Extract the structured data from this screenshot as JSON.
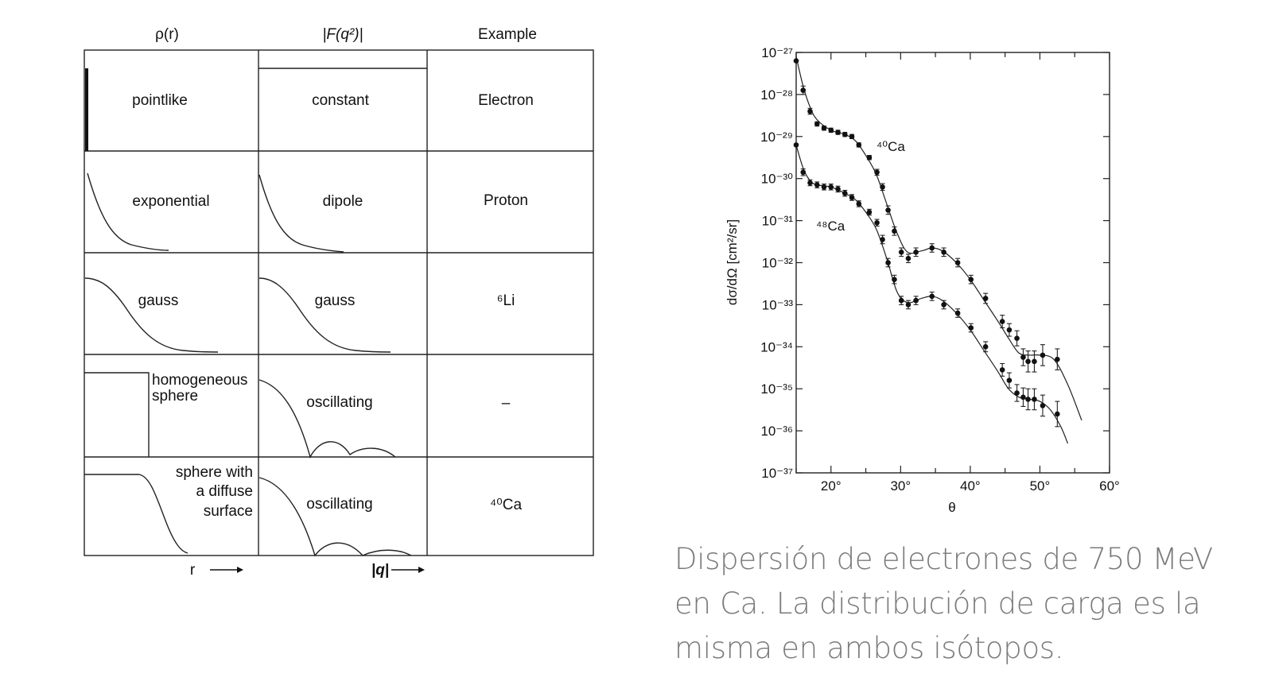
{
  "form_factor_table": {
    "headers": {
      "density": "ρ(r)",
      "form_factor": "|F(q²)|",
      "example": "Example"
    },
    "rows": [
      {
        "density": "pointlike",
        "form_factor": "constant",
        "example": "Electron"
      },
      {
        "density": "exponential",
        "form_factor": "dipole",
        "example": "Proton"
      },
      {
        "density": "gauss",
        "form_factor": "gauss",
        "example": "⁶Li"
      },
      {
        "density_line1": "homogeneous",
        "density_line2": "sphere",
        "form_factor": "oscillating",
        "example": "–"
      },
      {
        "density_line1": "sphere with",
        "density_line2": "a diffuse",
        "density_line3": "surface",
        "form_factor": "oscillating",
        "example": "⁴⁰Ca"
      }
    ],
    "axis_r": "r",
    "axis_q": "|q|"
  },
  "chart_data": {
    "type": "scatter",
    "title": "",
    "xlabel": "θ",
    "ylabel": "dσ/dΩ [cm²/sr]",
    "xlim": [
      15,
      60
    ],
    "ylim_log10": [
      -37,
      -27
    ],
    "y_scale": "log",
    "x_ticks": [
      "20°",
      "30°",
      "40°",
      "50°",
      "60°"
    ],
    "y_ticks": [
      "10⁻²⁷",
      "10⁻²⁸",
      "10⁻²⁹",
      "10⁻³⁰",
      "10⁻³¹",
      "10⁻³²",
      "10⁻³³",
      "10⁻³⁴",
      "10⁻³⁵",
      "10⁻³⁶",
      "10⁻³⁷"
    ],
    "grid": false,
    "series": [
      {
        "name": "⁴⁰Ca",
        "x": [
          15,
          16,
          17,
          18,
          19,
          20,
          21,
          22,
          23,
          24,
          25.5,
          26.6,
          27.4,
          28.2,
          29.1,
          30.1,
          31.1,
          32.2,
          34.5,
          36.2,
          38.2,
          40.1,
          42.2,
          44.6,
          45.6,
          46.7,
          47.6,
          48.3,
          49.2,
          50.4,
          52.5
        ],
        "y": [
          -27.2,
          -27.9,
          -28.4,
          -28.7,
          -28.8,
          -28.85,
          -28.9,
          -28.95,
          -29.0,
          -29.2,
          -29.5,
          -29.85,
          -30.2,
          -30.75,
          -31.25,
          -31.75,
          -31.9,
          -31.75,
          -31.65,
          -31.75,
          -32.0,
          -32.4,
          -32.85,
          -33.4,
          -33.6,
          -33.8,
          -34.25,
          -34.35,
          -34.35,
          -34.2,
          -34.3
        ],
        "err_log10": [
          0,
          0.1,
          0.07,
          0.05,
          0.05,
          0.05,
          0.05,
          0.05,
          0.05,
          0.05,
          0.05,
          0.07,
          0.08,
          0.1,
          0.1,
          0.1,
          0.1,
          0.1,
          0.1,
          0.1,
          0.1,
          0.1,
          0.12,
          0.15,
          0.15,
          0.18,
          0.2,
          0.25,
          0.25,
          0.25,
          0.25
        ],
        "curve_x": [
          15,
          16,
          17,
          18,
          20,
          22,
          23.5,
          25,
          26.5,
          28,
          29.5,
          31,
          33,
          34.5,
          36,
          38,
          40,
          42,
          44,
          45.5,
          47,
          48.5,
          50,
          52,
          54,
          56
        ],
        "curve_y": [
          -27.1,
          -27.8,
          -28.3,
          -28.6,
          -28.85,
          -28.95,
          -29.1,
          -29.45,
          -29.9,
          -30.6,
          -31.3,
          -31.75,
          -31.72,
          -31.65,
          -31.72,
          -32.0,
          -32.4,
          -32.9,
          -33.4,
          -33.8,
          -34.15,
          -34.2,
          -34.2,
          -34.3,
          -34.9,
          -35.75
        ]
      },
      {
        "name": "⁴⁸Ca",
        "x": [
          15,
          16,
          17,
          18,
          19,
          20,
          21,
          22,
          23,
          24,
          25.5,
          26.6,
          27.4,
          28.2,
          29.1,
          30.1,
          31.1,
          32.2,
          34.5,
          36.2,
          38.2,
          40.1,
          42.2,
          44.6,
          45.6,
          46.7,
          47.6,
          48.3,
          49.2,
          50.4,
          52.5
        ],
        "y": [
          -29.2,
          -29.85,
          -30.1,
          -30.15,
          -30.2,
          -30.2,
          -30.25,
          -30.35,
          -30.45,
          -30.6,
          -30.8,
          -31.05,
          -31.45,
          -32.0,
          -32.4,
          -32.9,
          -33.0,
          -32.9,
          -32.8,
          -33.0,
          -33.2,
          -33.55,
          -34.0,
          -34.55,
          -34.8,
          -35.1,
          -35.2,
          -35.25,
          -35.25,
          -35.4,
          -35.6
        ],
        "err_log10": [
          0,
          0.08,
          0.07,
          0.07,
          0.07,
          0.07,
          0.07,
          0.07,
          0.07,
          0.07,
          0.07,
          0.08,
          0.1,
          0.1,
          0.1,
          0.1,
          0.1,
          0.1,
          0.1,
          0.1,
          0.1,
          0.1,
          0.12,
          0.15,
          0.18,
          0.2,
          0.22,
          0.25,
          0.25,
          0.25,
          0.3
        ],
        "curve_x": [
          15,
          16,
          17,
          18,
          20,
          22,
          23.5,
          25,
          26.5,
          28,
          29.5,
          31,
          33,
          34.5,
          36,
          38,
          40,
          42,
          44,
          45.5,
          47,
          48.5,
          50,
          51.5,
          53,
          54
        ],
        "curve_y": [
          -29.2,
          -29.75,
          -30.05,
          -30.15,
          -30.2,
          -30.35,
          -30.5,
          -30.8,
          -31.2,
          -31.9,
          -32.7,
          -32.95,
          -32.85,
          -32.8,
          -32.9,
          -33.2,
          -33.6,
          -34.1,
          -34.6,
          -35.0,
          -35.2,
          -35.25,
          -35.3,
          -35.5,
          -35.9,
          -36.3
        ]
      }
    ],
    "series_labels": [
      "⁴⁰Ca",
      "⁴⁸Ca"
    ]
  },
  "caption": {
    "line1": "Dispersión de electrones de 750 MeV",
    "line2": "en Ca. La distribución de carga es la",
    "line3": "misma en ambos isótopos."
  }
}
